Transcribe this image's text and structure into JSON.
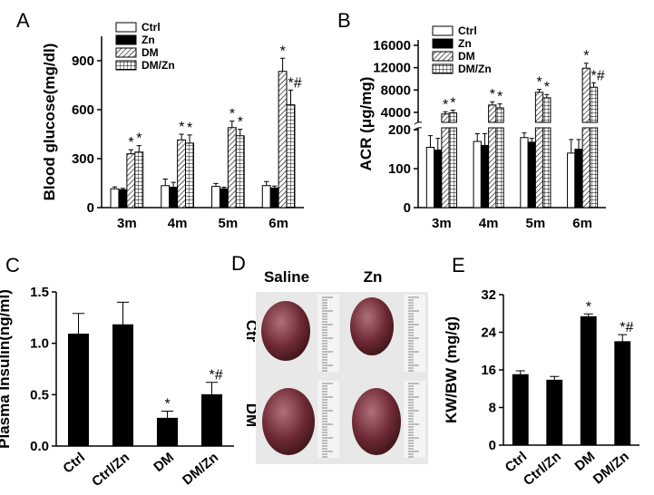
{
  "chart_data": [
    {
      "type": "bar",
      "panel": "A",
      "y_label": "Blood glucose(mg/dl)",
      "categories": [
        "3m",
        "4m",
        "5m",
        "6m"
      ],
      "series": [
        {
          "name": "Ctrl",
          "color": "#ffffff",
          "pattern": "none",
          "values": [
            115,
            135,
            130,
            135
          ],
          "errors": [
            12,
            40,
            18,
            25
          ],
          "markers": [
            null,
            null,
            null,
            null
          ]
        },
        {
          "name": "Zn",
          "color": "#000000",
          "pattern": "none",
          "values": [
            110,
            125,
            115,
            120
          ],
          "errors": [
            8,
            30,
            10,
            12
          ],
          "markers": [
            null,
            null,
            null,
            null
          ]
        },
        {
          "name": "DM",
          "color": "#ffffff",
          "pattern": "diagonal",
          "values": [
            330,
            415,
            490,
            835
          ],
          "errors": [
            25,
            35,
            40,
            80
          ],
          "markers": [
            "*",
            "*",
            "*",
            "*"
          ]
        },
        {
          "name": "DM/Zn",
          "color": "#ffffff",
          "pattern": "grid",
          "values": [
            340,
            395,
            440,
            630
          ],
          "errors": [
            40,
            50,
            40,
            90
          ],
          "markers": [
            "*",
            "*",
            "*",
            "*#"
          ]
        }
      ],
      "ylim": [
        0,
        1050
      ],
      "yticks": [
        0,
        300,
        600,
        900
      ],
      "legend": "upper left"
    },
    {
      "type": "bar",
      "panel": "B",
      "y_label": "ACR (μg/mg)",
      "categories": [
        "3m",
        "4m",
        "5m",
        "6m"
      ],
      "broken_axis": true,
      "series": [
        {
          "name": "Ctrl",
          "color": "#ffffff",
          "pattern": "none",
          "values": [
            155,
            170,
            180,
            140
          ],
          "errors": [
            30,
            20,
            12,
            35
          ],
          "markers": [
            null,
            null,
            null,
            null
          ]
        },
        {
          "name": "Zn",
          "color": "#000000",
          "pattern": "none",
          "values": [
            148,
            160,
            168,
            150
          ],
          "errors": [
            30,
            30,
            10,
            25
          ],
          "markers": [
            null,
            null,
            null,
            null
          ]
        },
        {
          "name": "DM",
          "color": "#ffffff",
          "pattern": "diagonal",
          "values": [
            3700,
            5300,
            7600,
            11900
          ],
          "errors": [
            400,
            600,
            500,
            900
          ],
          "markers": [
            "*",
            "*",
            "*",
            "*"
          ]
        },
        {
          "name": "DM/Zn",
          "color": "#ffffff",
          "pattern": "grid",
          "values": [
            3900,
            4800,
            6600,
            8500
          ],
          "errors": [
            500,
            700,
            600,
            800
          ],
          "markers": [
            "*",
            "*",
            "*",
            "*#"
          ]
        }
      ],
      "ylim": [
        0,
        205
      ],
      "yticks": [
        0,
        100,
        200
      ],
      "ylim_upper": [
        2200,
        16000
      ],
      "yticks_upper": [
        4000,
        8000,
        12000,
        16000
      ],
      "legend": "upper left"
    },
    {
      "type": "bar",
      "panel": "C",
      "y_label": "Plasma Insulin(ng/ml)",
      "categories": [
        "Ctrl",
        "Ctrl/Zn",
        "DM",
        "DM/Zn"
      ],
      "series": [
        {
          "color": "#000000",
          "pattern": "none",
          "values": [
            1.09,
            1.18,
            0.27,
            0.5
          ],
          "errors": [
            0.2,
            0.22,
            0.07,
            0.12
          ],
          "markers": [
            null,
            null,
            "*",
            "*#"
          ]
        }
      ],
      "ylim": [
        0,
        1.5
      ],
      "yticks": [
        {
          "value": 0,
          "label": "0.0"
        },
        0.5,
        {
          "value": 1,
          "label": "1.0"
        },
        1.5
      ]
    },
    {
      "type": "bar",
      "panel": "E",
      "y_label": "KW/BW (mg/g)",
      "categories": [
        "Ctrl",
        "Ctrl/Zn",
        "DM",
        "DM/Zn"
      ],
      "series": [
        {
          "color": "#000000",
          "pattern": "none",
          "values": [
            15,
            13.8,
            27.3,
            22
          ],
          "errors": [
            0.8,
            0.8,
            0.6,
            1.5
          ],
          "markers": [
            null,
            null,
            "*",
            "*#"
          ]
        }
      ],
      "ylim": [
        0,
        32
      ],
      "yticks": [
        0,
        8,
        16,
        24,
        32
      ]
    }
  ],
  "panel_d": {
    "panel": "D",
    "columns": [
      "Saline",
      "Zn"
    ],
    "rows": [
      "Ctr",
      "DM"
    ]
  }
}
